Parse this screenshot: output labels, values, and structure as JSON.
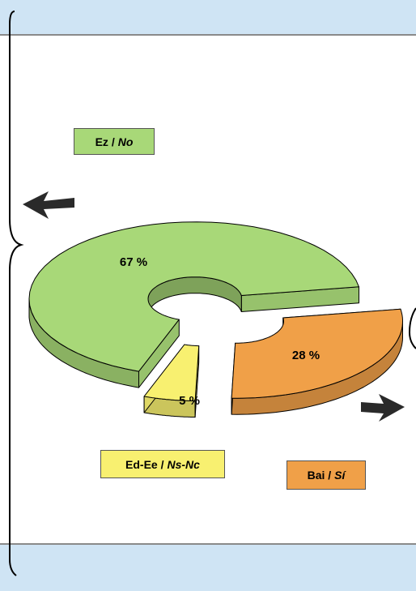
{
  "chart_data": {
    "type": "pie",
    "style": "3d-donut-exploded",
    "slices": [
      {
        "name": "Ez / No",
        "label_main": "Ez /",
        "label_italic": "No",
        "value": 67,
        "value_label": "67 %",
        "color": "#a8d878"
      },
      {
        "name": "Bai / Sí",
        "label_main": "Bai /",
        "label_italic": "Sí",
        "value": 28,
        "value_label": "28 %",
        "color": "#f0a048"
      },
      {
        "name": "Ed-Ee / Ns-Nc",
        "label_main": "Ed-Ee /",
        "label_italic": "Ns-Nc",
        "value": 5,
        "value_label": "5 %",
        "color": "#f8f070"
      }
    ]
  }
}
